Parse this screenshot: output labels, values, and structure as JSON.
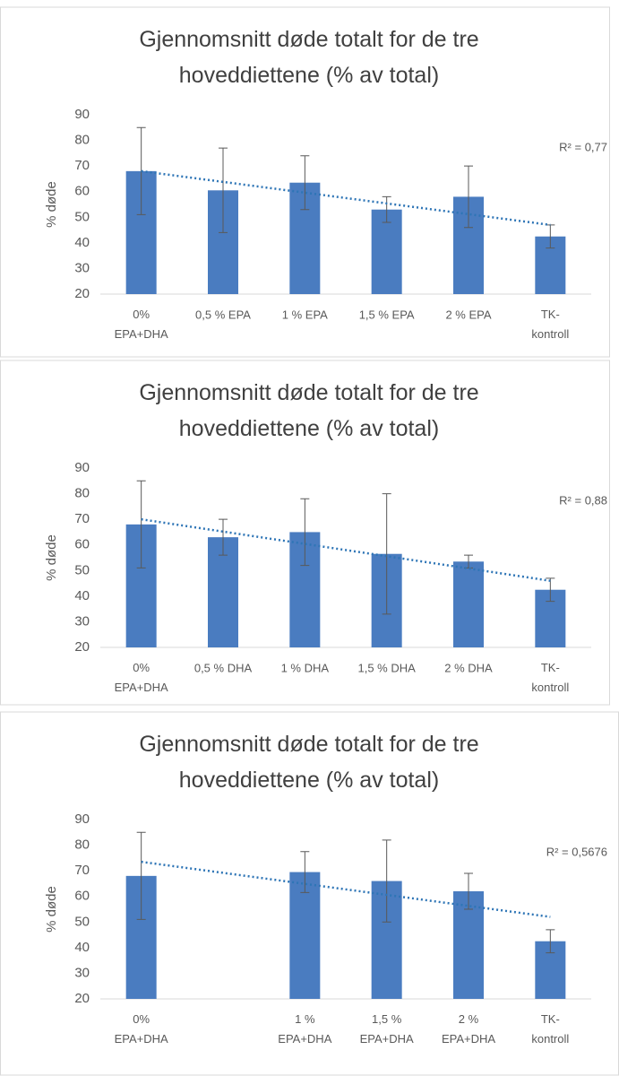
{
  "chart_data": [
    {
      "type": "bar",
      "title": "Gjennomsnitt døde totalt for de tre\nhoveddiettene (% av total)",
      "y_label": "% døde",
      "categories": [
        "0%\nEPA+DHA",
        "0,5 % EPA",
        "1 % EPA",
        "1,5 % EPA",
        "2 % EPA",
        "TK-\nkontroll"
      ],
      "values": [
        68,
        60.5,
        63.5,
        53,
        58,
        42.5
      ],
      "errors": [
        17,
        16.5,
        10.5,
        5,
        12,
        4.5
      ],
      "trendline": [
        68,
        47
      ],
      "annotation": "R² = 0,77",
      "color": "#4a7cc0",
      "trend_color": "#2e75b6",
      "ylim": [
        20,
        90
      ],
      "yticks": [
        20,
        30,
        40,
        50,
        60,
        70,
        80,
        90
      ]
    },
    {
      "type": "bar",
      "title": "Gjennomsnitt døde totalt for de tre\nhoveddiettene (% av total)",
      "y_label": "% døde",
      "categories": [
        "0%\nEPA+DHA",
        "0,5 % DHA",
        "1 % DHA",
        "1,5 % DHA",
        "2 % DHA",
        "TK-\nkontroll"
      ],
      "values": [
        68,
        63,
        65,
        56.5,
        53.5,
        42.5
      ],
      "errors": [
        17,
        7,
        13,
        23.5,
        2.5,
        4.5
      ],
      "trendline": [
        70,
        46
      ],
      "annotation": "R² = 0,88",
      "color": "#4a7cc0",
      "trend_color": "#2e75b6",
      "ylim": [
        20,
        90
      ],
      "yticks": [
        20,
        30,
        40,
        50,
        60,
        70,
        80,
        90
      ]
    },
    {
      "type": "bar",
      "title": "Gjennomsnitt døde totalt for de tre\nhoveddiettene (% av total)",
      "y_label": "% døde",
      "categories": [
        "0%\nEPA+DHA",
        null,
        "1 %\nEPA+DHA",
        "1,5 %\nEPA+DHA",
        "2 %\nEPA+DHA",
        "TK-\nkontroll"
      ],
      "values": [
        68,
        null,
        69.5,
        66,
        62,
        42.5
      ],
      "errors": [
        17,
        null,
        8,
        16,
        7,
        4.5
      ],
      "trendline": [
        73.5,
        52
      ],
      "annotation": "R² = 0,5676",
      "color": "#4a7cc0",
      "trend_color": "#2e75b6",
      "ylim": [
        20,
        90
      ],
      "yticks": [
        20,
        30,
        40,
        50,
        60,
        70,
        80,
        90
      ]
    }
  ]
}
